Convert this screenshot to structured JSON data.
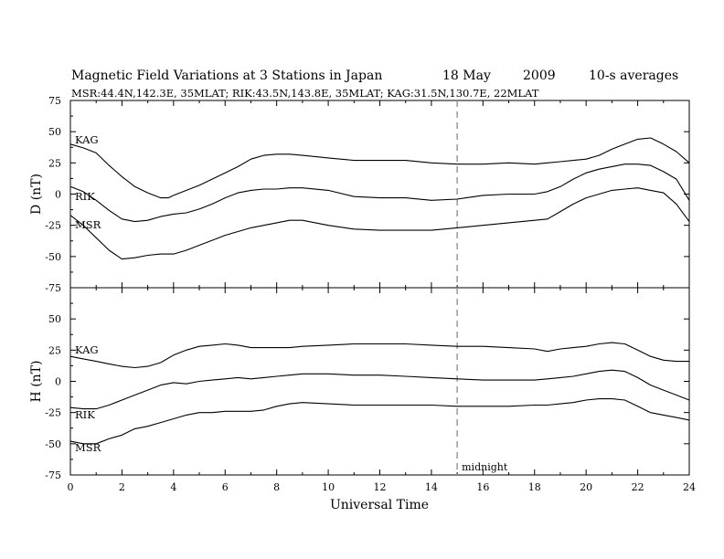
{
  "header": {
    "title": "Magnetic Field Variations at 3 Stations in Japan",
    "date": "18  May",
    "year": "2009",
    "averaging": "10-s averages",
    "stations": "MSR:44.4N,142.3E, 35MLAT;  RIK:43.5N,143.8E, 35MLAT;  KAG:31.5N,130.7E, 22MLAT"
  },
  "chart_data": [
    {
      "type": "line",
      "ylabel": "D (nT)",
      "ylim": [
        -75,
        75
      ],
      "yticks": [
        -75,
        -50,
        -25,
        0,
        25,
        50,
        75
      ],
      "xlim": [
        0,
        24
      ],
      "series": [
        {
          "name": "KAG",
          "x": [
            0,
            0.5,
            1,
            1.5,
            2,
            2.5,
            3,
            3.5,
            3.8,
            4,
            4.5,
            5,
            5.5,
            6,
            6.5,
            7,
            7.5,
            8,
            8.5,
            9,
            10,
            11,
            12,
            13,
            14,
            15,
            16,
            17,
            18,
            18.5,
            19,
            19.5,
            20,
            20.5,
            21,
            21.5,
            22,
            22.5,
            23,
            23.5,
            24
          ],
          "y": [
            40,
            37,
            33,
            23,
            14,
            6,
            1,
            -3,
            -3,
            -1,
            3,
            7,
            12,
            17,
            22,
            28,
            31,
            32,
            32,
            31,
            29,
            27,
            27,
            27,
            25,
            24,
            24,
            25,
            24,
            25,
            26,
            27,
            28,
            31,
            36,
            40,
            44,
            45,
            40,
            34,
            25
          ]
        },
        {
          "name": "RIK",
          "x": [
            0,
            0.5,
            1,
            1.5,
            2,
            2.5,
            3,
            3.5,
            4,
            4.5,
            5,
            5.5,
            6,
            6.5,
            7,
            7.5,
            8,
            8.5,
            9,
            10,
            11,
            12,
            13,
            14,
            15,
            16,
            17,
            18,
            18.5,
            19,
            19.5,
            20,
            20.5,
            21,
            21.5,
            22,
            22.5,
            23,
            23.5,
            24
          ],
          "y": [
            6,
            2,
            -5,
            -13,
            -20,
            -22,
            -21,
            -18,
            -16,
            -15,
            -12,
            -8,
            -3,
            1,
            3,
            4,
            4,
            5,
            5,
            3,
            -2,
            -3,
            -3,
            -5,
            -4,
            -1,
            0,
            0,
            2,
            6,
            12,
            17,
            20,
            22,
            24,
            24,
            23,
            18,
            12,
            -5
          ]
        },
        {
          "name": "MSR",
          "x": [
            0,
            0.5,
            1,
            1.5,
            2,
            2.5,
            3,
            3.5,
            4,
            4.5,
            5,
            5.5,
            6,
            6.5,
            7,
            7.5,
            8,
            8.5,
            9,
            10,
            11,
            12,
            13,
            14,
            15,
            16,
            17,
            18,
            18.5,
            19,
            19.5,
            20,
            20.5,
            21,
            21.5,
            22,
            22.5,
            23,
            23.5,
            24
          ],
          "y": [
            -17,
            -25,
            -35,
            -45,
            -52,
            -51,
            -49,
            -48,
            -48,
            -45,
            -41,
            -37,
            -33,
            -30,
            -27,
            -25,
            -23,
            -21,
            -21,
            -25,
            -28,
            -29,
            -29,
            -29,
            -27,
            -25,
            -23,
            -21,
            -20,
            -14,
            -8,
            -3,
            0,
            3,
            4,
            5,
            3,
            1,
            -8,
            -22
          ]
        }
      ]
    },
    {
      "type": "line",
      "ylabel": "H (nT)",
      "ylim": [
        -75,
        75
      ],
      "yticks": [
        -75,
        -50,
        -25,
        0,
        25,
        50,
        75
      ],
      "xlim": [
        0,
        24
      ],
      "xticks": [
        0,
        2,
        4,
        6,
        8,
        10,
        12,
        14,
        16,
        18,
        20,
        22,
        24
      ],
      "xlabel": "Universal Time",
      "series": [
        {
          "name": "KAG",
          "x": [
            0,
            0.5,
            1,
            1.5,
            2,
            2.5,
            3,
            3.5,
            4,
            4.5,
            5,
            5.5,
            6,
            6.5,
            7,
            7.5,
            8,
            8.5,
            9,
            10,
            11,
            12,
            13,
            14,
            15,
            16,
            17,
            18,
            18.5,
            19,
            19.5,
            20,
            20.5,
            21,
            21.5,
            22,
            22.5,
            23,
            23.5,
            24
          ],
          "y": [
            20,
            18,
            16,
            14,
            12,
            11,
            12,
            15,
            21,
            25,
            28,
            29,
            30,
            29,
            27,
            27,
            27,
            27,
            28,
            29,
            30,
            30,
            30,
            29,
            28,
            28,
            27,
            26,
            24,
            26,
            27,
            28,
            30,
            31,
            30,
            25,
            20,
            17,
            16,
            16
          ]
        },
        {
          "name": "RIK",
          "x": [
            0,
            0.5,
            1,
            1.5,
            2,
            2.5,
            3,
            3.5,
            4,
            4.5,
            5,
            5.5,
            6,
            6.5,
            7,
            7.5,
            8,
            8.5,
            9,
            10,
            11,
            12,
            13,
            14,
            15,
            16,
            17,
            18,
            18.5,
            19,
            19.5,
            20,
            20.5,
            21,
            21.5,
            22,
            22.5,
            23,
            23.5,
            24
          ],
          "y": [
            -21,
            -22,
            -22,
            -19,
            -15,
            -11,
            -7,
            -3,
            -1,
            -2,
            0,
            1,
            2,
            3,
            2,
            3,
            4,
            5,
            6,
            6,
            5,
            5,
            4,
            3,
            2,
            1,
            1,
            1,
            2,
            3,
            4,
            6,
            8,
            9,
            8,
            3,
            -3,
            -7,
            -11,
            -15
          ]
        },
        {
          "name": "MSR",
          "x": [
            0,
            0.5,
            1,
            1.5,
            2,
            2.5,
            3,
            3.5,
            4,
            4.5,
            5,
            5.5,
            6,
            6.5,
            7,
            7.5,
            8,
            8.5,
            9,
            10,
            11,
            12,
            13,
            14,
            15,
            16,
            17,
            18,
            18.5,
            19,
            19.5,
            20,
            20.5,
            21,
            21.5,
            22,
            22.5,
            23,
            23.5,
            24
          ],
          "y": [
            -48,
            -50,
            -50,
            -46,
            -43,
            -38,
            -36,
            -33,
            -30,
            -27,
            -25,
            -25,
            -24,
            -24,
            -24,
            -23,
            -20,
            -18,
            -17,
            -18,
            -19,
            -19,
            -19,
            -19,
            -20,
            -20,
            -20,
            -19,
            -19,
            -18,
            -17,
            -15,
            -14,
            -14,
            -15,
            -20,
            -25,
            -27,
            -29,
            -31
          ]
        }
      ],
      "annotations": [
        {
          "text": "midnight",
          "x": 15
        }
      ]
    }
  ],
  "style": {
    "line_color": "#000000",
    "midnight_line_color": "#999999"
  }
}
